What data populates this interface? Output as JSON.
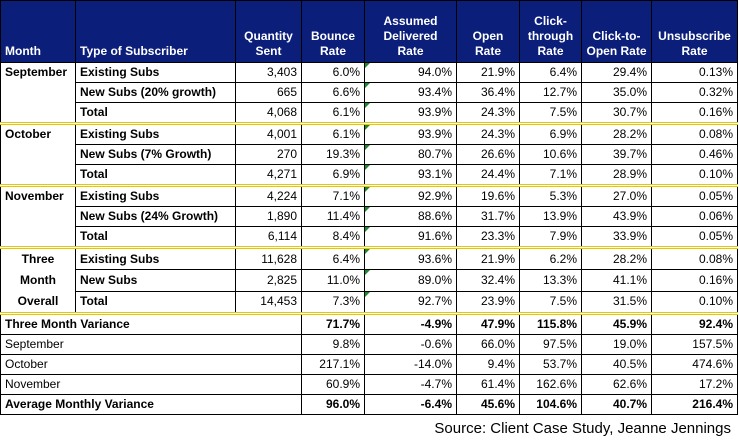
{
  "headers": [
    "Month",
    "Type of Subscriber",
    "Quantity Sent",
    "Bounce Rate",
    "Assumed Delivered Rate",
    "Open Rate",
    "Click-through Rate",
    "Click-to-Open Rate",
    "Unsubscribe Rate"
  ],
  "groups": [
    {
      "month": "September",
      "rows": [
        {
          "type": "Existing Subs",
          "qty": "3,403",
          "bounce": "6.0%",
          "delivered": "94.0%",
          "open": "21.9%",
          "ctr": "6.4%",
          "cto": "29.4%",
          "unsub": "0.13%"
        },
        {
          "type": "New Subs (20% growth)",
          "qty": "665",
          "bounce": "6.6%",
          "delivered": "93.4%",
          "open": "36.4%",
          "ctr": "12.7%",
          "cto": "35.0%",
          "unsub": "0.32%"
        },
        {
          "type": "Total",
          "qty": "4,068",
          "bounce": "6.1%",
          "delivered": "93.9%",
          "open": "24.3%",
          "ctr": "7.5%",
          "cto": "30.7%",
          "unsub": "0.16%"
        }
      ]
    },
    {
      "month": "October",
      "rows": [
        {
          "type": "Existing Subs",
          "qty": "4,001",
          "bounce": "6.1%",
          "delivered": "93.9%",
          "open": "24.3%",
          "ctr": "6.9%",
          "cto": "28.2%",
          "unsub": "0.08%"
        },
        {
          "type": "New Subs (7% Growth)",
          "qty": "270",
          "bounce": "19.3%",
          "delivered": "80.7%",
          "open": "26.6%",
          "ctr": "10.6%",
          "cto": "39.7%",
          "unsub": "0.46%"
        },
        {
          "type": "Total",
          "qty": "4,271",
          "bounce": "6.9%",
          "delivered": "93.1%",
          "open": "24.4%",
          "ctr": "7.1%",
          "cto": "28.9%",
          "unsub": "0.10%"
        }
      ]
    },
    {
      "month": "November",
      "rows": [
        {
          "type": "Existing Subs",
          "qty": "4,224",
          "bounce": "7.1%",
          "delivered": "92.9%",
          "open": "19.6%",
          "ctr": "5.3%",
          "cto": "27.0%",
          "unsub": "0.05%"
        },
        {
          "type": "New Subs (24% Growth)",
          "qty": "1,890",
          "bounce": "11.4%",
          "delivered": "88.6%",
          "open": "31.7%",
          "ctr": "13.9%",
          "cto": "43.9%",
          "unsub": "0.06%"
        },
        {
          "type": "Total",
          "qty": "6,114",
          "bounce": "8.4%",
          "delivered": "91.6%",
          "open": "23.3%",
          "ctr": "7.9%",
          "cto": "33.9%",
          "unsub": "0.05%"
        }
      ]
    },
    {
      "month_lines": [
        "Three",
        "Month",
        "Overall"
      ],
      "rows": [
        {
          "type": "Existing Subs",
          "qty": "11,628",
          "bounce": "6.4%",
          "delivered": "93.6%",
          "open": "21.9%",
          "ctr": "6.2%",
          "cto": "28.2%",
          "unsub": "0.08%"
        },
        {
          "type": "New Subs",
          "qty": "2,825",
          "bounce": "11.0%",
          "delivered": "89.0%",
          "open": "32.4%",
          "ctr": "13.3%",
          "cto": "41.1%",
          "unsub": "0.16%"
        },
        {
          "type": "Total",
          "qty": "14,453",
          "bounce": "7.3%",
          "delivered": "92.7%",
          "open": "23.9%",
          "ctr": "7.5%",
          "cto": "31.5%",
          "unsub": "0.10%"
        }
      ]
    }
  ],
  "variance": [
    {
      "label": "Three Month Variance",
      "bounce": "71.7%",
      "delivered": "-4.9%",
      "open": "47.9%",
      "ctr": "115.8%",
      "cto": "45.9%",
      "unsub": "92.4%"
    },
    {
      "label": "September",
      "bounce": "9.8%",
      "delivered": "-0.6%",
      "open": "66.0%",
      "ctr": "97.5%",
      "cto": "19.0%",
      "unsub": "157.5%"
    },
    {
      "label": "October",
      "bounce": "217.1%",
      "delivered": "-14.0%",
      "open": "9.4%",
      "ctr": "53.7%",
      "cto": "40.5%",
      "unsub": "474.6%"
    },
    {
      "label": "November",
      "bounce": "60.9%",
      "delivered": "-4.7%",
      "open": "61.4%",
      "ctr": "162.6%",
      "cto": "62.6%",
      "unsub": "17.2%"
    },
    {
      "label": "Average Monthly Variance",
      "bounce": "96.0%",
      "delivered": "-6.4%",
      "open": "45.6%",
      "ctr": "104.6%",
      "cto": "40.7%",
      "unsub": "216.4%"
    }
  ],
  "source": "Source: Client Case Study, Jeanne Jennings",
  "colors": {
    "header_bg": "#0b1e7a",
    "header_text": "#ffffff",
    "group_separator": "#e6c800",
    "cell_marker": "#1b8a2e"
  }
}
